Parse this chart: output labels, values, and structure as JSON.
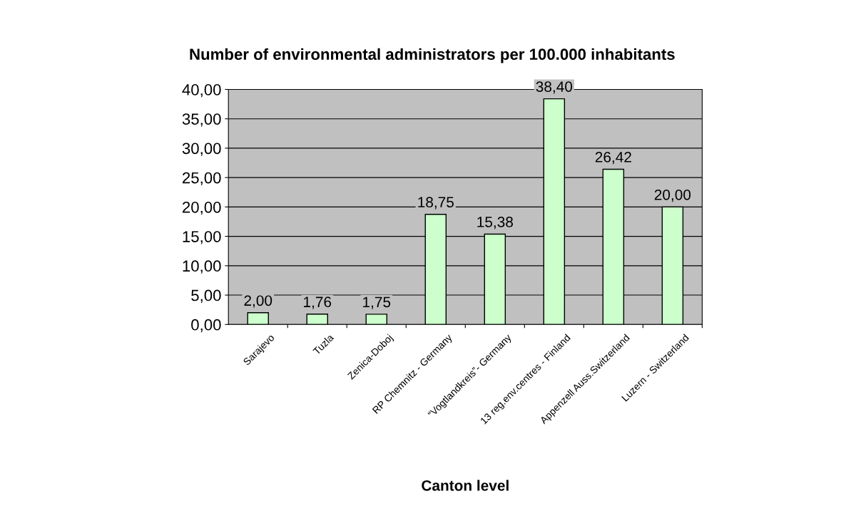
{
  "chart_data": {
    "type": "bar",
    "title": "Number of environmental administrators per 100.000 inhabitants",
    "xlabel": "Canton level",
    "categories": [
      "Sarajevo",
      "Tuzla",
      "Zenica-Doboj",
      "RP Chemnitz - Germany",
      "“Vogtlandkreis”- Germany",
      "13 reg.env.centres - Finland",
      "Appenzell Auss.Switzerland",
      "Luzern - Switzerland"
    ],
    "values": [
      2.0,
      1.76,
      1.75,
      18.75,
      15.38,
      38.4,
      26.42,
      20.0
    ],
    "value_labels": [
      "2,00",
      "1,76",
      "1,75",
      "18,75",
      "15,38",
      "38,40",
      "26,42",
      "20,00"
    ],
    "color": "#ccffcc",
    "ylim": [
      0,
      40
    ],
    "yticks": [
      {
        "value": 0,
        "label": "0,00"
      },
      {
        "value": 5,
        "label": "5,00"
      },
      {
        "value": 10,
        "label": "10,00"
      },
      {
        "value": 15,
        "label": "15,00"
      },
      {
        "value": 20,
        "label": "20,00"
      },
      {
        "value": 25,
        "label": "25,00"
      },
      {
        "value": 30,
        "label": "30,00"
      },
      {
        "value": 35,
        "label": "35,00"
      },
      {
        "value": 40,
        "label": "40,00"
      }
    ],
    "grid": "y",
    "legend": false
  }
}
